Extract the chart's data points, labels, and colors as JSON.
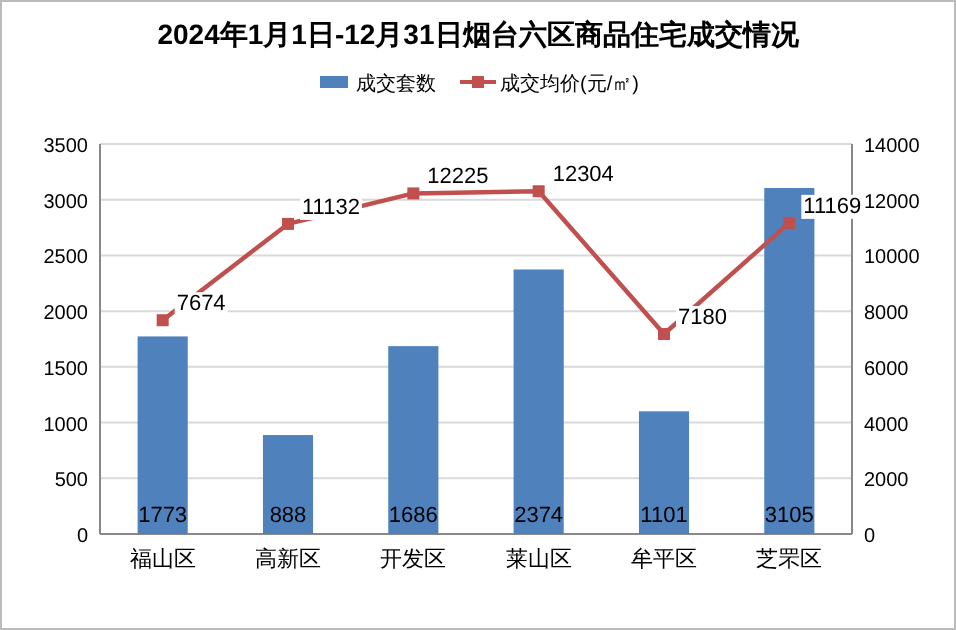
{
  "chart_data": {
    "type": "bar",
    "title": "2024年1月1日-12月31日烟台六区商品住宅成交情况",
    "categories": [
      "福山区",
      "高新区",
      "开发区",
      "莱山区",
      "牟平区",
      "芝罘区"
    ],
    "series": [
      {
        "name": "成交套数",
        "color": "#4f81bd",
        "values": [
          1773,
          888,
          1686,
          2374,
          1101,
          3105
        ]
      },
      {
        "name": "成交均价(元/㎡)",
        "type": "line",
        "axis": "y2",
        "color": "#c0504d",
        "values": [
          7674,
          11132,
          12225,
          12304,
          7180,
          11169
        ]
      }
    ],
    "ylim": [
      0,
      3500
    ],
    "yticks": [
      0,
      500,
      1000,
      1500,
      2000,
      2500,
      3000,
      3500
    ],
    "y2lim": [
      0,
      14000
    ],
    "y2ticks": [
      0,
      2000,
      4000,
      6000,
      8000,
      10000,
      12000,
      14000
    ],
    "grid": "y",
    "legend": "top",
    "marker": "square",
    "data_labels": true
  }
}
